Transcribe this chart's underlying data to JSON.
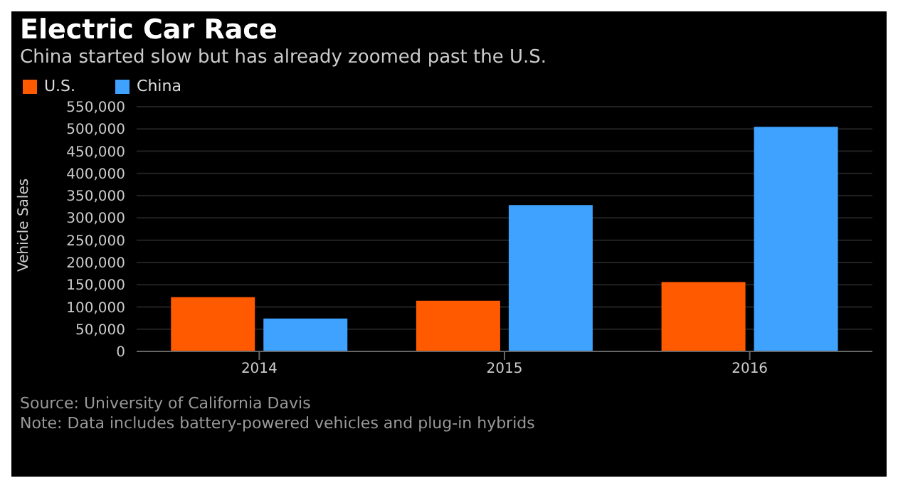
{
  "chart_data": {
    "type": "bar",
    "title": "Electric Car Race",
    "subtitle": "China started slow but has already zoomed past the U.S.",
    "ylabel": "Vehicle Sales",
    "categories": [
      "2014",
      "2015",
      "2016"
    ],
    "series": [
      {
        "name": "U.S.",
        "color": "#ff5a00",
        "values": [
          122000,
          114000,
          156000
        ]
      },
      {
        "name": "China",
        "color": "#3fa2ff",
        "values": [
          74000,
          329000,
          505000
        ]
      }
    ],
    "ylim": [
      0,
      550000
    ],
    "yticks": [
      0,
      {
        "value": 50000,
        "label": "50,000"
      },
      {
        "value": 100000,
        "label": "100,000"
      },
      {
        "value": 150000,
        "label": "150,000"
      },
      {
        "value": 200000,
        "label": "200,000"
      },
      {
        "value": 250000,
        "label": "250,000"
      },
      {
        "value": 300000,
        "label": "300,000"
      },
      {
        "value": 350000,
        "label": "350,000"
      },
      {
        "value": 400000,
        "label": "400,000"
      },
      {
        "value": 450000,
        "label": "450,000"
      },
      {
        "value": 500000,
        "label": "500,000"
      },
      {
        "value": 550000,
        "label": "550,000"
      }
    ],
    "grid": "y",
    "legend": "top left",
    "annotations": [
      "Source: University of California Davis",
      "Note: Data includes battery-powered vehicles and plug-in hybrids"
    ]
  }
}
